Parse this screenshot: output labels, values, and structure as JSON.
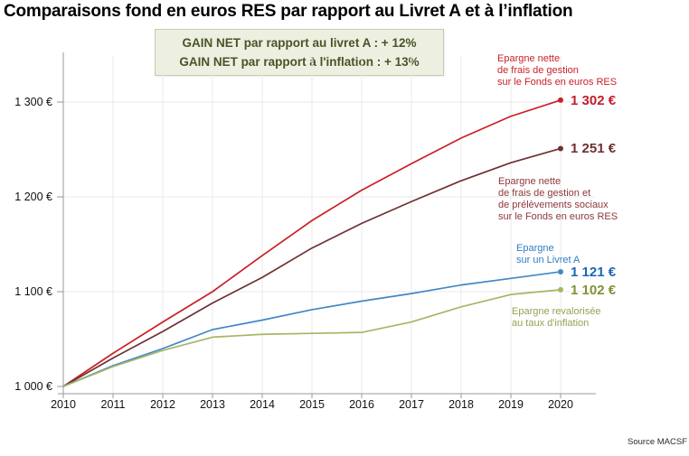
{
  "title": "Comparaisons fond en euros RES par rapport au Livret A et à l’inflation",
  "gain_box": {
    "line1": "GAIN NET par rapport au livret A : + 12%",
    "line2": "GAIN NET par rapport à l'inflation : + 13%"
  },
  "annotations": {
    "res_net": {
      "lines": [
        "Epargne nette",
        "de frais de gestion",
        "sur le Fonds en euros RES"
      ],
      "value": "1 302 €"
    },
    "res_net_social": {
      "lines": [
        "Epargne nette",
        "de frais de gestion et",
        "de prélèvements sociaux",
        "sur le Fonds en euros RES"
      ],
      "value": "1 251 €"
    },
    "livret_a": {
      "lines": [
        "Epargne",
        "sur un Livret A"
      ],
      "value": "1 121 €"
    },
    "inflation": {
      "lines": [
        "Epargne revalorisée",
        "au taux d'inflation"
      ],
      "value": "1 102 €"
    }
  },
  "source": "Source MACSF",
  "colors": {
    "res_net_line": "#cb2027",
    "res_net_social_line": "#6e3133",
    "livret_a_line": "#4288c5",
    "inflation_line": "#a5b765",
    "gridline": "#eaeaea",
    "axis": "#9a9a9a",
    "gain_box_bg": "#edf0e0",
    "gain_box_text": "#485427"
  },
  "chart_data": {
    "type": "line",
    "title": "Comparaisons fond en euros RES par rapport au Livret A et à l’inflation",
    "x": [
      2010,
      2011,
      2012,
      2013,
      2014,
      2015,
      2016,
      2017,
      2018,
      2019,
      2020
    ],
    "series": [
      {
        "name": "Epargne nette de frais de gestion sur le Fonds en euros RES",
        "color": "#cb2027",
        "values": [
          1000,
          1035,
          1068,
          1100,
          1138,
          1175,
          1207,
          1235,
          1262,
          1285,
          1302
        ],
        "end_value_label": "1 302 €"
      },
      {
        "name": "Epargne nette de frais de gestion et de prélèvements sociaux sur le Fonds en euros RES",
        "color": "#6e3133",
        "values": [
          1000,
          1030,
          1058,
          1088,
          1115,
          1146,
          1172,
          1195,
          1217,
          1236,
          1251
        ],
        "end_value_label": "1 251 €"
      },
      {
        "name": "Epargne sur un Livret A",
        "color": "#4288c5",
        "values": [
          1000,
          1022,
          1040,
          1060,
          1070,
          1081,
          1090,
          1098,
          1107,
          1114,
          1121
        ],
        "end_value_label": "1 121 €"
      },
      {
        "name": "Epargne revalorisée au taux d'inflation",
        "color": "#a5b765",
        "values": [
          1000,
          1021,
          1038,
          1052,
          1055,
          1056,
          1057,
          1068,
          1084,
          1097,
          1102
        ],
        "end_value_label": "1 102 €"
      }
    ],
    "y_ticks": [
      {
        "value": 1000,
        "label": "1 000 €"
      },
      {
        "value": 1100,
        "label": "1 100 €"
      },
      {
        "value": 1200,
        "label": "1 200 €"
      },
      {
        "value": 1300,
        "label": "1 300 €"
      }
    ],
    "y_gridlines": [
      1100,
      1200,
      1300
    ],
    "xlim": [
      2010,
      2020
    ],
    "ylim": [
      1000,
      1350
    ],
    "grid": true,
    "legend_position": "right-annotations"
  }
}
